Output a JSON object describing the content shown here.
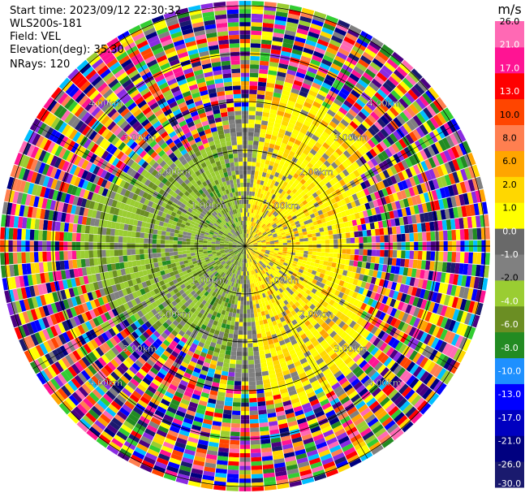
{
  "info": {
    "start_time": "Start time: 2023/09/12 22:30:32",
    "station": "WLS200s-181",
    "field": "Field: VEL",
    "elevation": "Elevation(deg): 35.30",
    "nrays": "NRays: 120"
  },
  "chart_data": {
    "type": "heatmap",
    "projection": "polar-ppi",
    "nrays": 120,
    "ring_labels": [
      "1.00km",
      "2.00km",
      "3.00km",
      "4.00km"
    ],
    "colorbar": {
      "unit": "m/s",
      "colors": [
        "#1a1a6e",
        "#000080",
        "#0000c0",
        "#0000ff",
        "#1e90ff",
        "#228b22",
        "#6b8e23",
        "#9acd32",
        "#808080",
        "#696969",
        "#ffff00",
        "#ffd700",
        "#ffa500",
        "#ff7f50",
        "#ff4500",
        "#ff0000",
        "#ff1493",
        "#ff69b4"
      ],
      "tick_labels": [
        "-30.0",
        "-26.0",
        "-21.0",
        "-17.0",
        "-13.0",
        "-10.0",
        "-8.0",
        "-6.0",
        "-4.0",
        "-2.0",
        "-1.0",
        "0.0",
        "1.0",
        "2.0",
        "6.0",
        "8.0",
        "10.0",
        "13.0",
        "17.0",
        "21.0",
        "26.0"
      ]
    }
  }
}
